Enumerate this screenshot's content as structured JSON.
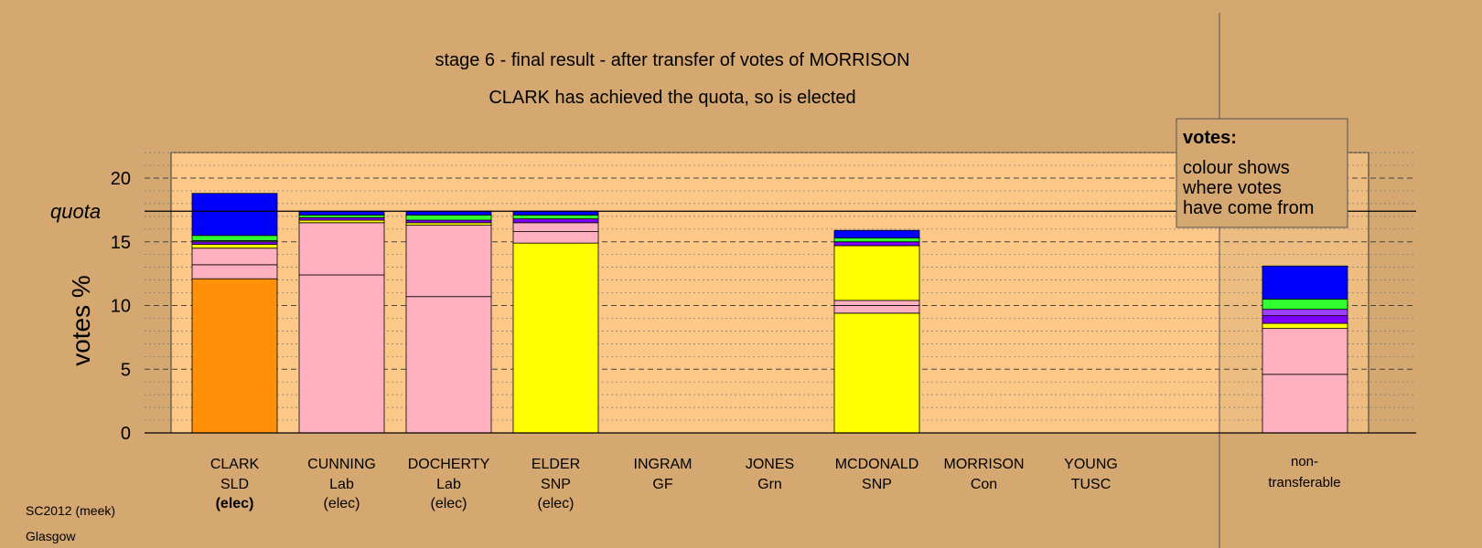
{
  "chart_data": {
    "type": "bar",
    "stacked": true,
    "title": "stage 6 - final result - after transfer of votes of MORRISON",
    "subtitle": "CLARK has achieved the quota, so is elected",
    "ylabel": "votes %",
    "ylim": [
      0,
      22
    ],
    "yticks": [
      "0",
      "5",
      "10",
      "15",
      "20"
    ],
    "quota_label": "quota",
    "quota": 17.4,
    "grid": "dotted minor every 1, dashed major every 5",
    "legend": {
      "title": "votes:",
      "text": [
        "colour shows",
        "where votes",
        "have come from"
      ],
      "position": "top-right"
    },
    "colors": {
      "SLD": "#ff9008",
      "Lab": "#ffb0c0",
      "SNP": "#ffff00",
      "Lab_light": "#ffb0c0",
      "Con": "#0000ff",
      "Grn": "#30ff30",
      "TUSC": "#8000ff",
      "GF": "#60c060",
      "Other": "#a040ff",
      "background": "#d4a870",
      "plot_background": "#fcc888"
    },
    "candidates": [
      {
        "name": "CLARK",
        "party": "SLD",
        "status": "(elec)",
        "status_bold": true,
        "segments": [
          {
            "source": "SLD",
            "color": "#ff9008",
            "value": 12.1
          },
          {
            "source": "Lab",
            "color": "#ffb0c0",
            "value": 1.1
          },
          {
            "source": "Lab",
            "color": "#ffb0c0",
            "value": 1.3
          },
          {
            "source": "SNP",
            "color": "#ffff00",
            "value": 0.3
          },
          {
            "source": "TUSC",
            "color": "#8000ff",
            "value": 0.2
          },
          {
            "source": "GF",
            "color": "#60c060",
            "value": 0.1
          },
          {
            "source": "Grn",
            "color": "#30ff30",
            "value": 0.4
          },
          {
            "source": "Con",
            "color": "#0000ff",
            "value": 3.3
          }
        ]
      },
      {
        "name": "CUNNING",
        "party": "Lab",
        "status": "(elec)",
        "status_bold": false,
        "segments": [
          {
            "source": "Lab",
            "color": "#ffb0c0",
            "value": 12.4
          },
          {
            "source": "Lab",
            "color": "#ffb0c0",
            "value": 4.1
          },
          {
            "source": "SNP",
            "color": "#ffff00",
            "value": 0.2
          },
          {
            "source": "TUSC",
            "color": "#8000ff",
            "value": 0.2
          },
          {
            "source": "Grn",
            "color": "#30ff30",
            "value": 0.2
          },
          {
            "source": "Con",
            "color": "#0000ff",
            "value": 0.3
          }
        ]
      },
      {
        "name": "DOCHERTY",
        "party": "Lab",
        "status": "(elec)",
        "status_bold": false,
        "segments": [
          {
            "source": "Lab",
            "color": "#ffb0c0",
            "value": 10.7
          },
          {
            "source": "Lab",
            "color": "#ffb0c0",
            "value": 5.6
          },
          {
            "source": "SNP",
            "color": "#ffff00",
            "value": 0.2
          },
          {
            "source": "TUSC",
            "color": "#8000ff",
            "value": 0.2
          },
          {
            "source": "Grn",
            "color": "#30ff30",
            "value": 0.4
          },
          {
            "source": "Con",
            "color": "#0000ff",
            "value": 0.3
          }
        ]
      },
      {
        "name": "ELDER",
        "party": "SNP",
        "status": "(elec)",
        "status_bold": false,
        "segments": [
          {
            "source": "SNP",
            "color": "#ffff00",
            "value": 14.9
          },
          {
            "source": "Lab",
            "color": "#ffb0c0",
            "value": 0.9
          },
          {
            "source": "Lab",
            "color": "#ffb0c0",
            "value": 0.7
          },
          {
            "source": "TUSC",
            "color": "#8000ff",
            "value": 0.3
          },
          {
            "source": "Grn",
            "color": "#30ff30",
            "value": 0.3
          },
          {
            "source": "Con",
            "color": "#0000ff",
            "value": 0.3
          }
        ]
      },
      {
        "name": "INGRAM",
        "party": "GF",
        "status": "",
        "status_bold": false,
        "segments": []
      },
      {
        "name": "JONES",
        "party": "Grn",
        "status": "",
        "status_bold": false,
        "segments": []
      },
      {
        "name": "MCDONALD",
        "party": "SNP",
        "status": "",
        "status_bold": false,
        "segments": [
          {
            "source": "SNP",
            "color": "#ffff00",
            "value": 9.4
          },
          {
            "source": "Lab",
            "color": "#ffb0c0",
            "value": 0.6
          },
          {
            "source": "Lab",
            "color": "#ffb0c0",
            "value": 0.4
          },
          {
            "source": "SNP",
            "color": "#ffff00",
            "value": 4.3
          },
          {
            "source": "TUSC",
            "color": "#8000ff",
            "value": 0.3
          },
          {
            "source": "Grn",
            "color": "#30ff30",
            "value": 0.3
          },
          {
            "source": "Con",
            "color": "#0000ff",
            "value": 0.6
          }
        ]
      },
      {
        "name": "MORRISON",
        "party": "Con",
        "status": "",
        "status_bold": false,
        "segments": []
      },
      {
        "name": "YOUNG",
        "party": "TUSC",
        "status": "",
        "status_bold": false,
        "segments": []
      }
    ],
    "non_transferable": {
      "label_line1": "non-",
      "label_line2": "transferable",
      "segments": [
        {
          "source": "Lab",
          "color": "#ffb0c0",
          "value": 4.6
        },
        {
          "source": "Lab",
          "color": "#ffb0c0",
          "value": 3.6
        },
        {
          "source": "SNP",
          "color": "#ffff00",
          "value": 0.4
        },
        {
          "source": "TUSC",
          "color": "#8000ff",
          "value": 0.6
        },
        {
          "source": "Other",
          "color": "#a040ff",
          "value": 0.5
        },
        {
          "source": "Grn",
          "color": "#30ff30",
          "value": 0.8
        },
        {
          "source": "Con",
          "color": "#0000ff",
          "value": 2.6
        }
      ]
    }
  },
  "footer": {
    "line1": "SC2012 (meek)",
    "line2": "Glasgow"
  }
}
